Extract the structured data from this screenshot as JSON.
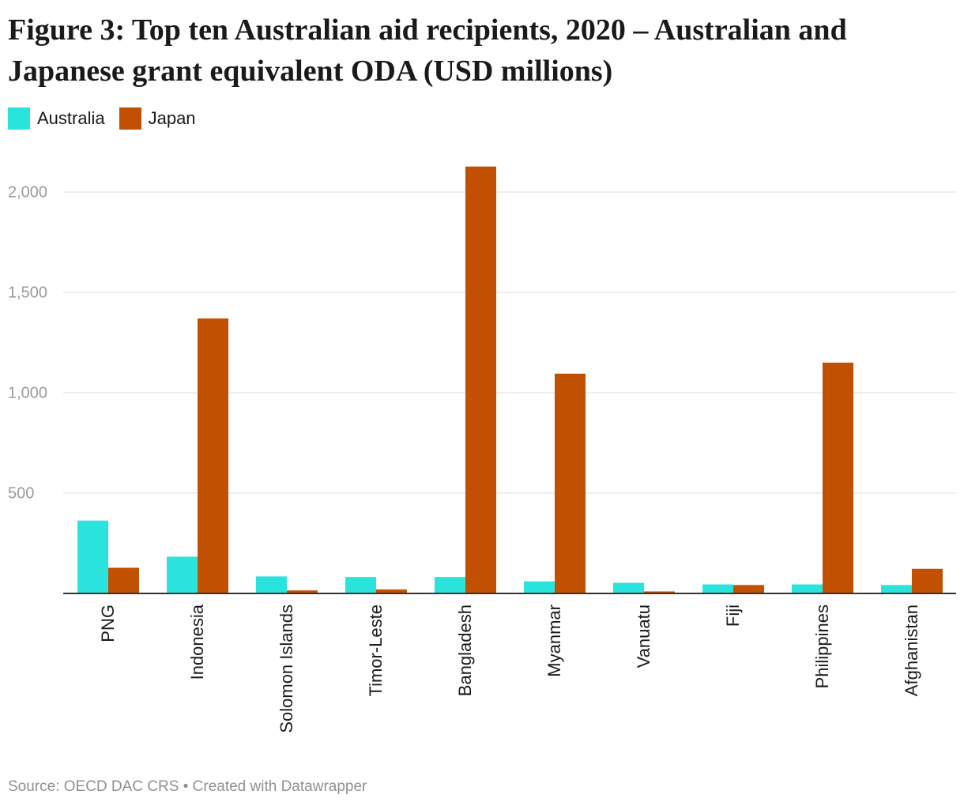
{
  "title": "Figure 3: Top ten Australian aid recipients, 2020 – Australian and Japanese grant equivalent ODA (USD millions)",
  "source": "Source: OECD DAC CRS • Created with Datawrapper",
  "chart_data": {
    "type": "bar",
    "categories": [
      "PNG",
      "Indonesia",
      "Solomon Islands",
      "Timor-Leste",
      "Bangladesh",
      "Myanmar",
      "Vanuatu",
      "Fiji",
      "Philippines",
      "Afghanistan"
    ],
    "series": [
      {
        "name": "Australia",
        "color": "#2ae3dd",
        "values": [
          363,
          183,
          85,
          82,
          82,
          60,
          53,
          45,
          45,
          42
        ]
      },
      {
        "name": "Japan",
        "color": "#c15000",
        "values": [
          128,
          1370,
          15,
          20,
          2127,
          1095,
          10,
          42,
          1150,
          123
        ]
      }
    ],
    "yticks": [
      500,
      1000,
      1500,
      2000
    ],
    "ytick_labels": [
      "500",
      "1,000",
      "1,500",
      "2,000"
    ],
    "ylim": [
      0,
      2200
    ],
    "legend_position": "top-left",
    "grid": true,
    "xlabel": "",
    "ylabel": ""
  }
}
